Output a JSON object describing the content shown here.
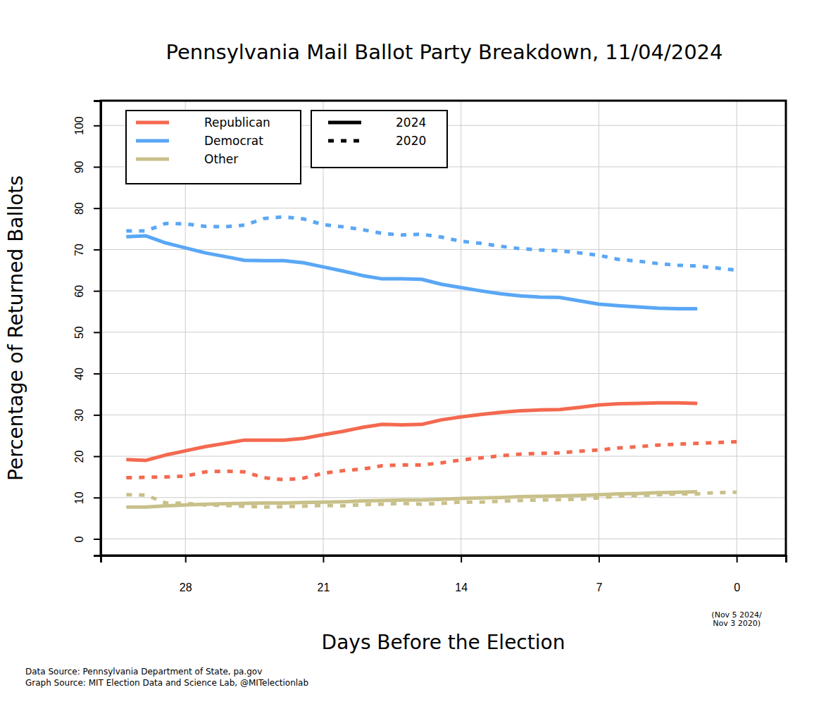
{
  "chart_data": {
    "type": "line",
    "title": "Pennsylvania Mail Ballot Party Breakdown, 11/04/2024",
    "x_label": "Days Before the Election",
    "y_label": "Percentage of Returned Ballots",
    "annotations": [
      "(Nov 5 2024/",
      "Nov 3 2020)"
    ],
    "source": [
      "Data Source: Pennsylvania Department of State, pa.gov",
      "Graph Source: MIT Election Data and Science Lab, @MITelectionlab"
    ],
    "x": [
      31,
      30,
      29,
      28,
      27,
      26,
      25,
      24,
      23,
      22,
      21,
      20,
      19,
      18,
      17,
      16,
      15,
      14,
      13,
      12,
      11,
      10,
      9,
      8,
      7,
      6,
      5,
      4,
      3,
      2,
      1,
      0
    ],
    "xlim": [
      32.3,
      -2.5
    ],
    "xticks": [
      28,
      21,
      14,
      7,
      0
    ],
    "ylim": [
      -4,
      106
    ],
    "yticks": [
      0,
      10,
      20,
      30,
      40,
      50,
      60,
      70,
      80,
      90,
      100
    ],
    "grid": true,
    "legend": "upper left",
    "legend_styles": [
      {
        "name": "2024",
        "line_style": "solid"
      },
      {
        "name": "2020",
        "line_style": "dashed"
      }
    ],
    "series": [
      {
        "name": "Republican",
        "group": "2024",
        "color": "#f4694f",
        "line_style": "solid",
        "values": [
          19.2,
          19.0,
          20.3,
          21.3,
          22.3,
          23.1,
          23.9,
          23.9,
          23.9,
          24.3,
          25.2,
          26.0,
          27.0,
          27.7,
          27.6,
          27.7,
          28.8,
          29.5,
          30.1,
          30.6,
          31.0,
          31.2,
          31.3,
          31.8,
          32.4,
          32.7,
          32.8,
          32.9,
          32.9,
          32.8,
          null,
          null
        ]
      },
      {
        "name": "Democrat",
        "group": "2024",
        "color": "#5aa7f5",
        "line_style": "solid",
        "values": [
          73.1,
          73.3,
          71.6,
          70.4,
          69.2,
          68.3,
          67.4,
          67.3,
          67.3,
          66.8,
          65.8,
          64.8,
          63.7,
          62.9,
          62.9,
          62.8,
          61.6,
          60.8,
          60.0,
          59.3,
          58.8,
          58.5,
          58.4,
          57.6,
          56.8,
          56.4,
          56.1,
          55.8,
          55.7,
          55.7,
          null,
          null
        ]
      },
      {
        "name": "Other",
        "group": "2024",
        "color": "#c9c08a",
        "line_style": "solid",
        "values": [
          7.7,
          7.7,
          8.0,
          8.2,
          8.4,
          8.5,
          8.6,
          8.7,
          8.7,
          8.8,
          8.9,
          9.0,
          9.2,
          9.3,
          9.4,
          9.4,
          9.6,
          9.8,
          9.9,
          10.0,
          10.2,
          10.3,
          10.4,
          10.5,
          10.7,
          10.9,
          11.0,
          11.2,
          11.3,
          11.4,
          null,
          null
        ]
      },
      {
        "name": "Republican",
        "group": "2020",
        "color": "#f4694f",
        "line_style": "dashed",
        "values": [
          14.8,
          14.9,
          15.0,
          15.2,
          16.2,
          16.4,
          16.2,
          14.8,
          14.3,
          14.7,
          15.9,
          16.5,
          16.9,
          17.7,
          17.9,
          17.9,
          18.4,
          19.1,
          19.6,
          20.1,
          20.5,
          20.7,
          20.8,
          21.2,
          21.5,
          22.0,
          22.3,
          22.7,
          22.9,
          23.1,
          23.3,
          23.5
        ]
      },
      {
        "name": "Democrat",
        "group": "2020",
        "color": "#5aa7f5",
        "line_style": "dashed",
        "values": [
          74.5,
          74.5,
          76.3,
          76.2,
          75.6,
          75.5,
          75.9,
          77.5,
          77.9,
          77.4,
          76.0,
          75.5,
          74.8,
          73.9,
          73.5,
          73.7,
          73.0,
          72.0,
          71.5,
          70.8,
          70.2,
          69.9,
          69.7,
          69.2,
          68.6,
          67.6,
          67.2,
          66.6,
          66.2,
          66.0,
          65.5,
          65.0
        ]
      },
      {
        "name": "Other",
        "group": "2020",
        "color": "#c9c08a",
        "line_style": "dashed",
        "values": [
          10.7,
          10.6,
          8.7,
          8.6,
          8.2,
          8.1,
          7.9,
          7.7,
          7.8,
          7.9,
          8.1,
          8.0,
          8.3,
          8.4,
          8.6,
          8.4,
          8.6,
          8.9,
          8.9,
          9.1,
          9.3,
          9.4,
          9.5,
          9.6,
          9.9,
          10.4,
          10.5,
          10.7,
          10.9,
          10.9,
          11.2,
          11.3
        ]
      }
    ]
  }
}
